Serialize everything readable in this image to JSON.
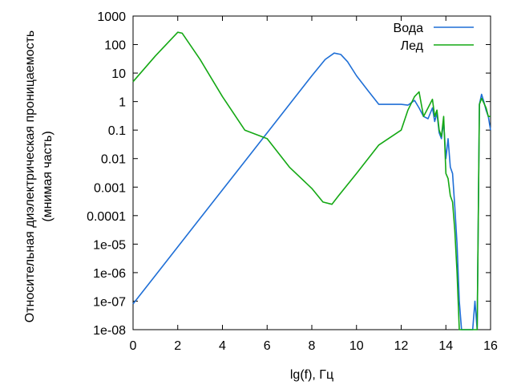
{
  "chart_data": {
    "type": "line",
    "xlabel": "lg(f), Гц",
    "ylabel": [
      "Относительная диэлектрическая проницаемость",
      "(мнимая часть)"
    ],
    "xlim": [
      0,
      16
    ],
    "ylim": [
      1e-08,
      1000
    ],
    "yscale": "log",
    "grid": false,
    "legend_position": "top-right",
    "x_ticks": [
      0,
      2,
      4,
      6,
      8,
      10,
      12,
      14,
      16
    ],
    "x_tick_labels": [
      "0",
      "2",
      "4",
      "6",
      "8",
      "10",
      "12",
      "14",
      "16"
    ],
    "y_ticks": [
      1e-08,
      1e-07,
      1e-06,
      1e-05,
      0.0001,
      0.001,
      0.01,
      0.1,
      1,
      10,
      100,
      1000
    ],
    "y_tick_labels": [
      "1e-08",
      "1e-07",
      "1e-06",
      "1e-05",
      "0.0001",
      "0.001",
      "0.01",
      "0.1",
      "1",
      "10",
      "100",
      "1000"
    ],
    "series": [
      {
        "name": "Вода",
        "color": "#1f6fd6",
        "x": [
          0,
          1,
          2,
          3,
          4,
          5,
          6,
          7,
          8,
          8.6,
          9,
          9.3,
          9.6,
          10,
          10.5,
          11,
          11.5,
          12,
          12.3,
          12.6,
          12.8,
          13.0,
          13.2,
          13.4,
          13.5,
          13.6,
          13.7,
          13.8,
          13.9,
          14.0,
          14.1,
          14.2,
          14.3,
          14.4,
          14.5,
          14.6,
          14.7,
          14.8,
          14.9,
          15.0,
          15.1,
          15.2,
          15.3,
          15.4,
          15.5,
          15.6,
          15.7,
          15.8,
          15.9,
          16.0
        ],
        "y": [
          8e-08,
          8e-07,
          8e-06,
          8e-05,
          0.0008,
          0.008,
          0.08,
          0.8,
          8,
          30,
          50,
          45,
          25,
          8,
          2.5,
          0.8,
          0.8,
          0.8,
          0.75,
          1.1,
          0.6,
          0.3,
          0.25,
          0.6,
          0.2,
          0.4,
          0.08,
          0.05,
          0.2,
          0.01,
          0.05,
          0.005,
          0.003,
          0.0002,
          1e-05,
          1e-07,
          1e-08,
          1e-08,
          1e-08,
          1e-08,
          1e-08,
          1e-08,
          1e-07,
          1e-08,
          0.8,
          1.8,
          1.0,
          0.5,
          0.3,
          0.1
        ]
      },
      {
        "name": "Лед",
        "color": "#14a814",
        "x": [
          0,
          1,
          2,
          2.2,
          3,
          4,
          5,
          6,
          7,
          8,
          8.5,
          8.9,
          9.2,
          10,
          11,
          12,
          12.3,
          12.6,
          12.8,
          13.0,
          13.2,
          13.4,
          13.5,
          13.6,
          13.7,
          13.8,
          13.9,
          14.0,
          14.1,
          14.2,
          14.3,
          14.4,
          14.5,
          14.6,
          14.7,
          14.8,
          14.9,
          15.0,
          15.1,
          15.2,
          15.3,
          15.4,
          15.5,
          15.6,
          15.7,
          15.8,
          15.9,
          16.0
        ],
        "y": [
          5,
          40,
          270,
          250,
          30,
          1.5,
          0.1,
          0.05,
          0.005,
          0.0009,
          0.0003,
          0.00025,
          0.0005,
          0.003,
          0.03,
          0.1,
          0.5,
          1.5,
          2.2,
          0.3,
          0.6,
          1.2,
          0.3,
          0.5,
          0.1,
          0.06,
          0.3,
          0.003,
          0.002,
          0.0005,
          0.0003,
          3e-05,
          1e-06,
          1e-08,
          1e-08,
          1e-08,
          1e-08,
          1e-08,
          1e-08,
          1e-08,
          1e-08,
          1e-08,
          0.8,
          1.3,
          0.9,
          0.6,
          0.3,
          0.3
        ]
      }
    ]
  }
}
